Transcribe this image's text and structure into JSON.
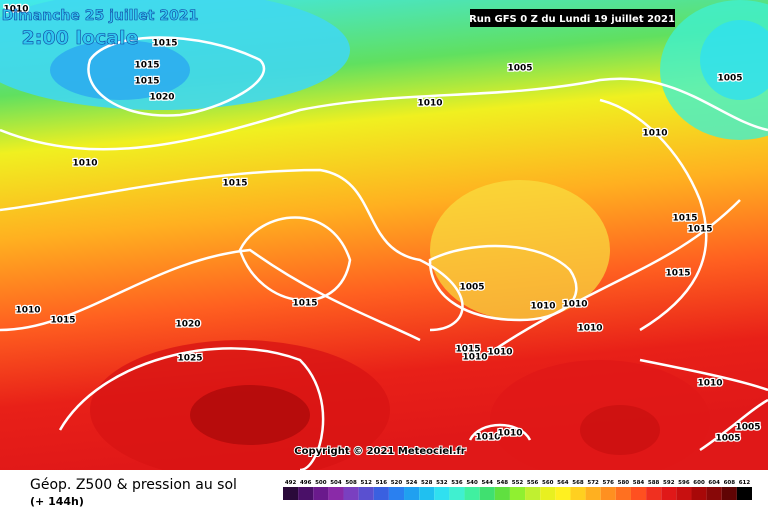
{
  "header": {
    "date": "Dimanche 25 juillet 2021",
    "time": "2:00 locale",
    "run": "Run GFS 0 Z du Lundi 19 juillet 2021"
  },
  "isobar_labels": [
    "1010",
    "1015",
    "1015",
    "1015",
    "1020",
    "1005",
    "1005",
    "1010",
    "1010",
    "1015",
    "1010",
    "1015",
    "1015",
    "1015",
    "1015",
    "1005",
    "1010",
    "1015",
    "1020",
    "1010",
    "1010",
    "1010",
    "1025",
    "1015",
    "1010",
    "1010",
    "1010",
    "1005",
    "1005",
    "1010",
    "1010"
  ],
  "copyright": "Copyright © 2021 Meteociel.fr",
  "footer": {
    "title": "Géop. Z500 & pression au sol",
    "lead": "(+ 144h)"
  },
  "legend": {
    "labels": [
      "492",
      "496",
      "500",
      "504",
      "508",
      "512",
      "516",
      "520",
      "524",
      "528",
      "532",
      "536",
      "540",
      "544",
      "548",
      "552",
      "556",
      "560",
      "564",
      "568",
      "572",
      "576",
      "580",
      "584",
      "588",
      "592",
      "596",
      "600",
      "604",
      "608",
      "612"
    ],
    "colors": [
      "#2a0a3a",
      "#4a1068",
      "#6a1a8c",
      "#8a2aa8",
      "#7a40c0",
      "#5a50d0",
      "#3a60e0",
      "#2a80f0",
      "#20a0f0",
      "#20c0f0",
      "#30e0f0",
      "#40f0d0",
      "#40f0a0",
      "#40e070",
      "#60e040",
      "#90f030",
      "#c0f030",
      "#e8f020",
      "#fff020",
      "#ffd020",
      "#ffb020",
      "#ff9020",
      "#ff7020",
      "#ff5020",
      "#f03020",
      "#e01818",
      "#c81010",
      "#a80808",
      "#880808",
      "#600404",
      "#000000"
    ]
  }
}
